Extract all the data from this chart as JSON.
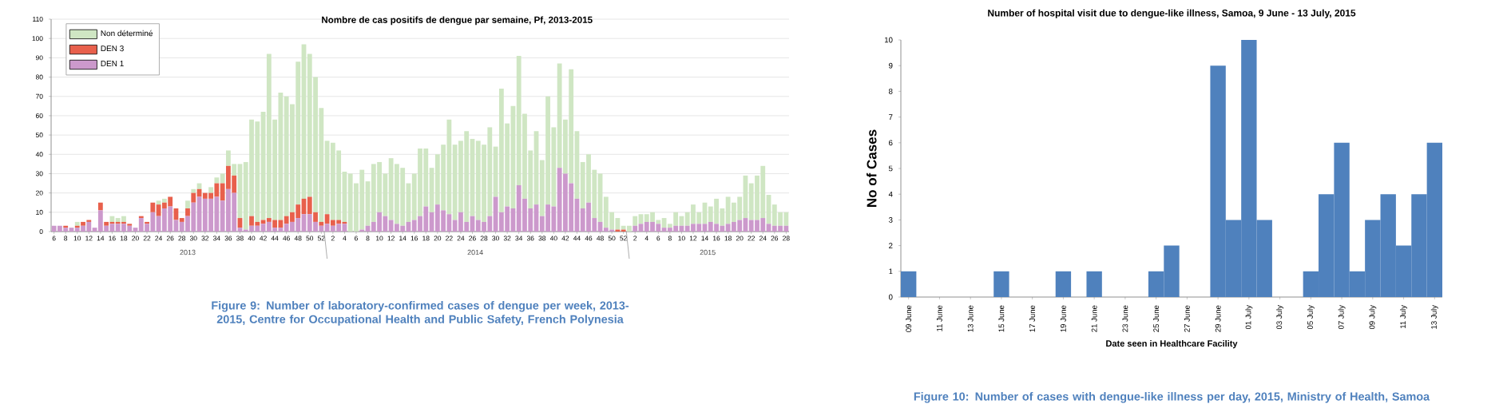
{
  "chart_data": [
    {
      "type": "bar",
      "title": "Nombre de cas positifs de dengue par semaine, Pf,  2013-2015",
      "stacked": true,
      "legend": "top left",
      "grid": "y",
      "ylim": [
        0,
        110
      ],
      "yticks": [
        0,
        10,
        20,
        30,
        40,
        50,
        60,
        70,
        80,
        90,
        100,
        110
      ],
      "categories": [
        "6",
        null,
        "8",
        null,
        "10",
        null,
        "12",
        null,
        "14",
        null,
        "16",
        null,
        "18",
        null,
        "20",
        null,
        "22",
        null,
        "24",
        null,
        "26",
        null,
        "28",
        null,
        "30",
        null,
        "32",
        null,
        "34",
        null,
        "36",
        null,
        "38",
        null,
        "40",
        null,
        "42",
        null,
        "44",
        null,
        "46",
        null,
        "48",
        null,
        "50",
        null,
        "52",
        null,
        "2",
        null,
        "4",
        null,
        "6",
        null,
        "8",
        null,
        "10",
        null,
        "12",
        null,
        "14",
        null,
        "16",
        null,
        "18",
        null,
        "20",
        null,
        "22",
        null,
        "24",
        null,
        "26",
        null,
        "28",
        null,
        "30",
        null,
        "32",
        null,
        "34",
        null,
        "36",
        null,
        "38",
        null,
        "40",
        null,
        "42",
        null,
        "44",
        null,
        "46",
        null,
        "48",
        null,
        "50",
        null,
        "52",
        null,
        "2",
        null,
        "4",
        null,
        "6",
        null,
        "8",
        null,
        "10",
        null,
        "12",
        null,
        "14",
        null,
        "16",
        null,
        "18",
        null,
        "20",
        null,
        "22",
        null,
        "24",
        null,
        "26",
        null,
        "28"
      ],
      "series": [
        {
          "name": "DEN 1",
          "color": "#cc99cc",
          "values": [
            3,
            3,
            2,
            2,
            2,
            3,
            5,
            2,
            11,
            3,
            4,
            4,
            4,
            3,
            2,
            7,
            4,
            10,
            8,
            12,
            13,
            6,
            5,
            8,
            15,
            18,
            17,
            17,
            18,
            16,
            22,
            20,
            2,
            1,
            3,
            3,
            4,
            5,
            2,
            2,
            4,
            5,
            7,
            9,
            9,
            5,
            3,
            4,
            3,
            4,
            4,
            0,
            0,
            1,
            3,
            5,
            10,
            8,
            6,
            4,
            3,
            5,
            6,
            8,
            13,
            10,
            14,
            11,
            9,
            6,
            10,
            5,
            8,
            6,
            5,
            8,
            18,
            10,
            13,
            12,
            24,
            17,
            12,
            14,
            8,
            14,
            13,
            33,
            30,
            25,
            17,
            12,
            15,
            7,
            5,
            2,
            1,
            0,
            0,
            0,
            3,
            4,
            5,
            5,
            4,
            2,
            2,
            3,
            3,
            3,
            4,
            4,
            4,
            5,
            4,
            3,
            4,
            5,
            6,
            7,
            6,
            6,
            7,
            4,
            3,
            3,
            3
          ]
        },
        {
          "name": "DEN 3",
          "color": "#e8604c",
          "values": [
            0,
            0,
            1,
            0,
            1,
            2,
            1,
            0,
            4,
            2,
            1,
            1,
            1,
            1,
            0,
            1,
            1,
            5,
            6,
            3,
            5,
            6,
            2,
            4,
            5,
            4,
            3,
            3,
            7,
            9,
            12,
            9,
            5,
            0,
            5,
            2,
            2,
            2,
            4,
            4,
            4,
            5,
            7,
            8,
            9,
            5,
            2,
            5,
            3,
            2,
            1,
            0,
            0,
            0,
            0,
            0,
            0,
            0,
            0,
            0,
            0,
            0,
            0,
            0,
            0,
            0,
            0,
            0,
            0,
            0,
            0,
            0,
            0,
            0,
            0,
            0,
            0,
            0,
            0,
            0,
            0,
            0,
            0,
            0,
            0,
            0,
            0,
            0,
            0,
            0,
            0,
            0,
            0,
            0,
            0,
            0,
            0,
            1,
            1,
            0,
            0,
            0,
            0,
            0,
            0,
            0,
            0,
            0,
            0,
            0,
            0,
            0,
            0,
            0,
            0,
            0,
            0,
            0,
            0,
            0,
            0,
            0,
            0,
            0,
            0,
            0,
            0
          ]
        },
        {
          "name": "Non déterminé",
          "color": "#cfe6c3",
          "values": [
            0,
            0,
            0,
            0,
            2,
            null,
            0,
            0,
            0,
            0,
            3,
            2,
            3,
            0,
            0,
            0,
            0,
            null,
            2,
            2,
            0,
            0,
            0,
            4,
            2,
            3,
            0,
            3,
            3,
            5,
            8,
            6,
            28,
            35,
            50,
            52,
            56,
            85,
            52,
            66,
            62,
            56,
            74,
            80,
            74,
            70,
            59,
            38,
            40,
            36,
            26,
            30,
            25,
            31,
            23,
            30,
            26,
            22,
            32,
            31,
            30,
            20,
            24,
            35,
            30,
            23,
            26,
            34,
            49,
            39,
            37,
            47,
            40,
            41,
            40,
            46,
            26,
            64,
            43,
            53,
            67,
            44,
            30,
            38,
            29,
            56,
            41,
            54,
            28,
            59,
            35,
            24,
            25,
            25,
            25,
            16,
            9,
            6,
            2,
            3,
            5,
            5,
            4,
            5,
            2,
            5,
            2,
            7,
            5,
            7,
            10,
            6,
            11,
            8,
            13,
            9,
            14,
            10,
            12,
            22,
            19,
            23,
            27,
            15,
            11,
            7,
            7
          ]
        }
      ],
      "annotations": [
        "2013",
        "2014",
        "2015",
        "Figure 9: Number of laboratory-confirmed cases of dengue per week, 2013-2015, Centre for Occupational Health and Public Safety, French Polynesia"
      ]
    },
    {
      "type": "bar",
      "title": "Number of hospital visit due to dengue-like illness, Samoa, 9 June - 13 July, 2015",
      "xlabel": "Date seen in Healthcare Facility",
      "ylabel": "No of Cases",
      "ylim": [
        0,
        10
      ],
      "yticks": [
        0,
        1,
        2,
        3,
        4,
        5,
        6,
        7,
        8,
        9,
        10
      ],
      "color": "#4f81bd",
      "categories": [
        "09 June",
        null,
        "11 June",
        null,
        "13 June",
        null,
        "15 June",
        null,
        "17 June",
        null,
        "19 June",
        null,
        "21 June",
        null,
        "23 June",
        null,
        "25 June",
        null,
        "27 June",
        null,
        "29 June",
        null,
        "01 July",
        null,
        "03 July",
        null,
        "05 July",
        null,
        "07 July",
        null,
        "09 July",
        null,
        "11 July",
        null,
        "13 July"
      ],
      "values": [
        1,
        0,
        0,
        0,
        0,
        0,
        1,
        0,
        0,
        0,
        1,
        0,
        1,
        0,
        0,
        0,
        1,
        2,
        0,
        0,
        9,
        3,
        10,
        3,
        0,
        0,
        1,
        4,
        6,
        1,
        3,
        4,
        2,
        4,
        6
      ],
      "annotations": [
        "Figure 10: Number of cases with dengue-like illness per day, 2015, Ministry of Health, Samoa"
      ]
    }
  ]
}
